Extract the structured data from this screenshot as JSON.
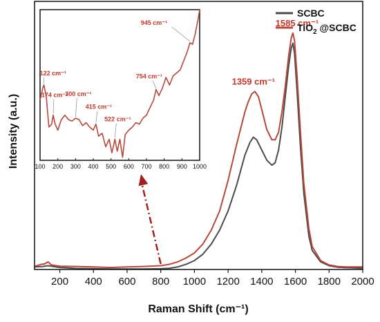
{
  "chart_data": {
    "type": "line",
    "xlabel": "Raman Shift (cm⁻¹)",
    "ylabel": "Intensity (a.u.)",
    "xlim": [
      50,
      2000
    ],
    "ylim": [
      0,
      1
    ],
    "x_ticks": [
      200,
      400,
      600,
      800,
      1000,
      1200,
      1400,
      1600,
      1800,
      2000
    ],
    "y_tick_labels": false,
    "colors": {
      "SCBC": "#4a4a4a",
      "TiO2@SCBC": "#b5473a",
      "annotation": "#c0392b",
      "arrow": "#a31f1f"
    },
    "legend": {
      "placement": "top-right",
      "entries": [
        {
          "name": "SCBC",
          "display": "SCBC"
        },
        {
          "name": "TiO2@SCBC",
          "display_pre": "TiO",
          "display_sub": "2",
          "display_post": " @SCBC"
        }
      ]
    },
    "series": [
      {
        "name": "SCBC",
        "x": [
          50,
          100,
          130,
          200,
          300,
          400,
          500,
          600,
          700,
          800,
          850,
          900,
          950,
          1000,
          1050,
          1100,
          1150,
          1200,
          1250,
          1300,
          1330,
          1350,
          1370,
          1400,
          1430,
          1460,
          1480,
          1500,
          1520,
          1540,
          1560,
          1575,
          1585,
          1595,
          1610,
          1630,
          1650,
          1680,
          1700,
          1750,
          1800,
          1850,
          1900,
          1950,
          2000
        ],
        "y": [
          0.01,
          0.012,
          0.015,
          0.008,
          0.004,
          0.003,
          0.002,
          0.002,
          0.002,
          0.003,
          0.005,
          0.01,
          0.02,
          0.035,
          0.06,
          0.1,
          0.155,
          0.23,
          0.33,
          0.45,
          0.5,
          0.52,
          0.51,
          0.47,
          0.43,
          0.41,
          0.42,
          0.47,
          0.56,
          0.68,
          0.8,
          0.87,
          0.89,
          0.85,
          0.7,
          0.48,
          0.3,
          0.13,
          0.075,
          0.03,
          0.015,
          0.009,
          0.007,
          0.006,
          0.005
        ]
      },
      {
        "name": "TiO2@SCBC",
        "x": [
          50,
          90,
          110,
          130,
          150,
          200,
          300,
          400,
          500,
          600,
          700,
          800,
          850,
          900,
          950,
          1000,
          1050,
          1100,
          1150,
          1200,
          1250,
          1300,
          1320,
          1340,
          1359,
          1380,
          1400,
          1430,
          1460,
          1480,
          1500,
          1520,
          1540,
          1560,
          1575,
          1585,
          1595,
          1610,
          1630,
          1650,
          1680,
          1700,
          1750,
          1800,
          1850,
          1900,
          1950,
          2000
        ],
        "y": [
          0.012,
          0.02,
          0.022,
          0.03,
          0.018,
          0.013,
          0.012,
          0.01,
          0.008,
          0.01,
          0.012,
          0.015,
          0.02,
          0.03,
          0.045,
          0.065,
          0.1,
          0.155,
          0.23,
          0.35,
          0.49,
          0.62,
          0.66,
          0.69,
          0.7,
          0.68,
          0.63,
          0.55,
          0.51,
          0.51,
          0.54,
          0.62,
          0.72,
          0.84,
          0.91,
          0.93,
          0.9,
          0.76,
          0.54,
          0.34,
          0.16,
          0.09,
          0.035,
          0.018,
          0.012,
          0.01,
          0.01,
          0.01
        ]
      }
    ],
    "peak_annotations": [
      {
        "label": "1359 cm⁻¹",
        "x": 1359
      },
      {
        "label": "1585 cm⁻¹",
        "x": 1585
      }
    ],
    "inset": {
      "xlim": [
        100,
        1000
      ],
      "x_ticks": [
        100,
        200,
        300,
        400,
        500,
        600,
        700,
        800,
        900,
        1000
      ],
      "series": {
        "name": "TiO2@SCBC",
        "x": [
          100,
          115,
          122,
          135,
          150,
          165,
          174,
          185,
          200,
          220,
          240,
          260,
          280,
          300,
          320,
          340,
          360,
          380,
          400,
          415,
          430,
          450,
          470,
          490,
          505,
          515,
          522,
          535,
          550,
          565,
          580,
          600,
          620,
          640,
          660,
          680,
          700,
          720,
          740,
          754,
          770,
          790,
          810,
          830,
          850,
          870,
          890,
          910,
          930,
          945,
          960,
          975,
          990,
          1000
        ],
        "y": [
          0.4,
          0.48,
          0.5,
          0.42,
          0.22,
          0.24,
          0.3,
          0.24,
          0.2,
          0.27,
          0.3,
          0.27,
          0.26,
          0.28,
          0.27,
          0.23,
          0.25,
          0.22,
          0.2,
          0.24,
          0.16,
          0.18,
          0.09,
          0.14,
          0.05,
          0.1,
          0.14,
          0.06,
          0.14,
          0.02,
          0.17,
          0.2,
          0.22,
          0.25,
          0.24,
          0.28,
          0.3,
          0.35,
          0.4,
          0.47,
          0.43,
          0.48,
          0.55,
          0.5,
          0.56,
          0.58,
          0.6,
          0.66,
          0.72,
          0.78,
          0.77,
          0.84,
          0.93,
          1.0
        ]
      },
      "annotations": [
        {
          "label": "122 cm⁻¹",
          "x": 122
        },
        {
          "label": "174 cm⁻¹",
          "x": 174
        },
        {
          "label": "300 cm⁻¹",
          "x": 300
        },
        {
          "label": "415 cm⁻¹",
          "x": 415
        },
        {
          "label": "522 cm⁻¹",
          "x": 522
        },
        {
          "label": "754 cm⁻¹",
          "x": 754
        },
        {
          "label": "945 cm⁻¹",
          "x": 945
        }
      ],
      "source_x": 800
    }
  }
}
